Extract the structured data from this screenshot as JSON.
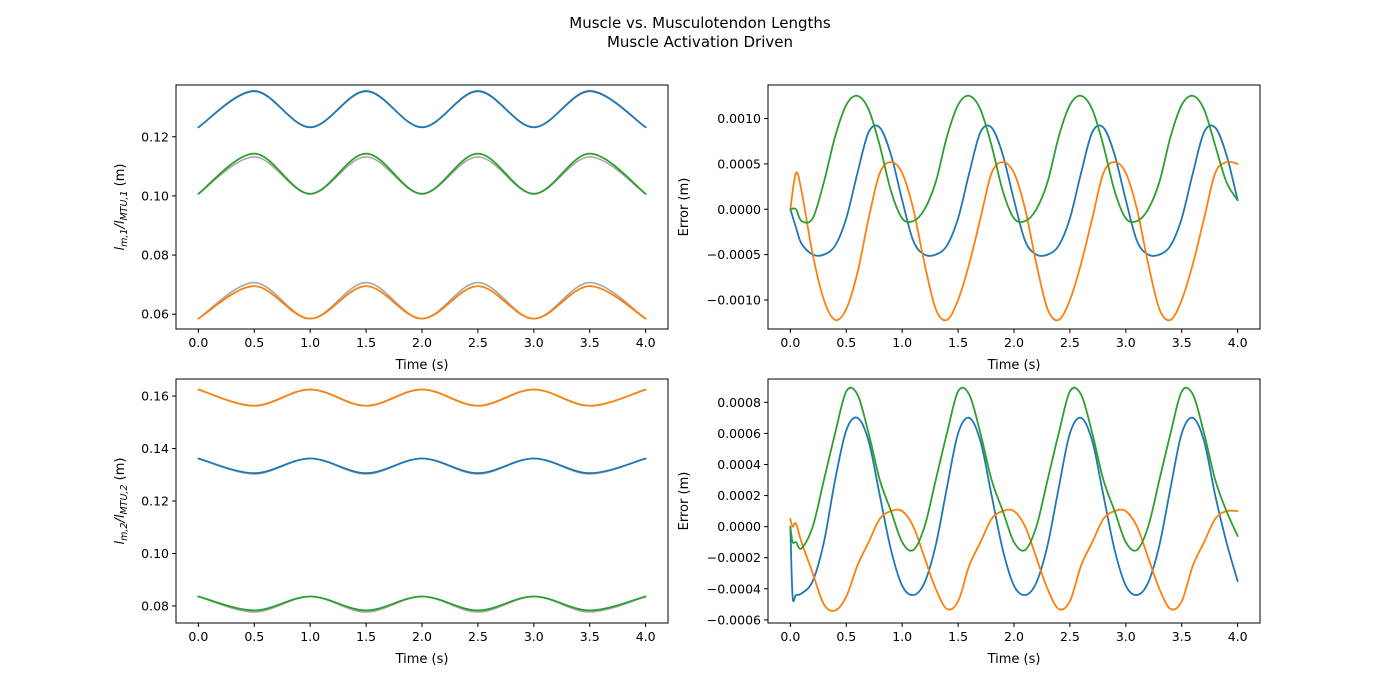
{
  "figure": {
    "title_line1": "Muscle vs. Musculotendon Lengths",
    "title_line2": "Muscle Activation Driven"
  },
  "colors": {
    "blue": "#1f77b4",
    "orange": "#ff7f0e",
    "green": "#2ca02c",
    "gray": "#a6a6a6"
  },
  "chart_data": [
    {
      "type": "line",
      "panel": "top-left",
      "xlabel": "Time (s)",
      "ylabel_main": "l",
      "ylabel_sub1": "m,1",
      "ylabel_mid": "/l",
      "ylabel_sub2": "MTU,1",
      "ylabel_unit": " (m)",
      "xlim": [
        -0.2,
        4.2
      ],
      "ylim": [
        0.055,
        0.1375
      ],
      "xticks": [
        0.0,
        0.5,
        1.0,
        1.5,
        2.0,
        2.5,
        3.0,
        3.5,
        4.0
      ],
      "xtick_labels": [
        "0.0",
        "0.5",
        "1.0",
        "1.5",
        "2.0",
        "2.5",
        "3.0",
        "3.5",
        "4.0"
      ],
      "yticks": [
        0.06,
        0.08,
        0.1,
        0.12
      ],
      "ytick_labels": [
        "0.06",
        "0.08",
        "0.10",
        "0.12"
      ],
      "grid": false,
      "x": [
        0.0,
        0.5,
        1.0,
        1.5,
        2.0,
        2.5,
        3.0,
        3.5,
        4.0
      ],
      "series": [
        {
          "color_key": "gray",
          "values": [
            0.1232,
            0.1356,
            0.1232,
            0.1356,
            0.1232,
            0.1356,
            0.1232,
            0.1356,
            0.1232
          ]
        },
        {
          "color_key": "blue",
          "values": [
            0.1232,
            0.1354,
            0.1232,
            0.1354,
            0.1232,
            0.1354,
            0.1232,
            0.1354,
            0.1232
          ]
        },
        {
          "color_key": "gray",
          "values": [
            0.1007,
            0.1132,
            0.1007,
            0.1132,
            0.1007,
            0.1132,
            0.1007,
            0.1132,
            0.1007
          ]
        },
        {
          "color_key": "green",
          "values": [
            0.1007,
            0.1143,
            0.1007,
            0.1143,
            0.1007,
            0.1143,
            0.1007,
            0.1143,
            0.1007
          ]
        },
        {
          "color_key": "gray",
          "values": [
            0.0585,
            0.0707,
            0.0585,
            0.0707,
            0.0585,
            0.0707,
            0.0585,
            0.0707,
            0.0585
          ]
        },
        {
          "color_key": "orange",
          "values": [
            0.0585,
            0.0695,
            0.0585,
            0.0695,
            0.0585,
            0.0695,
            0.0585,
            0.0695,
            0.0585
          ]
        }
      ]
    },
    {
      "type": "line",
      "panel": "top-right",
      "xlabel": "Time (s)",
      "ylabel": "Error (m)",
      "xlim": [
        -0.2,
        4.2
      ],
      "ylim": [
        -0.00132,
        0.00137
      ],
      "xticks": [
        0.0,
        0.5,
        1.0,
        1.5,
        2.0,
        2.5,
        3.0,
        3.5,
        4.0
      ],
      "xtick_labels": [
        "0.0",
        "0.5",
        "1.0",
        "1.5",
        "2.0",
        "2.5",
        "3.0",
        "3.5",
        "4.0"
      ],
      "yticks": [
        -0.001,
        -0.0005,
        0.0,
        0.0005,
        0.001
      ],
      "ytick_labels": [
        "−0.0010",
        "−0.0005",
        "0.0000",
        "0.0005",
        "0.0010"
      ],
      "grid": false,
      "x": [
        0.0,
        0.05,
        0.1,
        0.2,
        0.3,
        0.4,
        0.5,
        0.6,
        0.7,
        0.8,
        0.9,
        1.0,
        1.1,
        1.2,
        1.3,
        1.4,
        1.5,
        1.6,
        1.7,
        1.8,
        1.9,
        2.0,
        2.1,
        2.2,
        2.3,
        2.4,
        2.5,
        2.6,
        2.7,
        2.8,
        2.9,
        3.0,
        3.1,
        3.2,
        3.3,
        3.4,
        3.5,
        3.6,
        3.7,
        3.8,
        3.9,
        4.0
      ],
      "series": [
        {
          "color_key": "blue",
          "values": [
            0.0,
            -0.0002,
            -0.00038,
            -0.0005,
            -0.0005,
            -0.0004,
            -0.0001,
            0.0004,
            0.00085,
            0.0009,
            0.0006,
            0.0001,
            -0.00035,
            -0.0005,
            -0.0005,
            -0.0004,
            -0.0001,
            0.0004,
            0.00085,
            0.0009,
            0.0006,
            0.0001,
            -0.00035,
            -0.0005,
            -0.0005,
            -0.0004,
            -0.0001,
            0.0004,
            0.00085,
            0.0009,
            0.0006,
            0.0001,
            -0.00035,
            -0.0005,
            -0.0005,
            -0.0004,
            -0.0001,
            0.0004,
            0.00085,
            0.0009,
            0.0006,
            0.0001
          ]
        },
        {
          "color_key": "orange",
          "values": [
            0.0,
            0.0004,
            0.0002,
            -0.0005,
            -0.001,
            -0.00122,
            -0.0011,
            -0.0007,
            -0.0001,
            0.0004,
            0.00052,
            0.0004,
            0.0,
            -0.0006,
            -0.0011,
            -0.00122,
            -0.001,
            -0.0006,
            -0.0001,
            0.0004,
            0.00052,
            0.0004,
            0.0,
            -0.0006,
            -0.0011,
            -0.00122,
            -0.001,
            -0.0006,
            -0.0001,
            0.0004,
            0.00052,
            0.0004,
            0.0,
            -0.0006,
            -0.0011,
            -0.00122,
            -0.001,
            -0.0006,
            -0.0001,
            0.0004,
            0.00052,
            0.0005
          ]
        },
        {
          "color_key": "green",
          "values": [
            0.0,
            0.0,
            -0.00013,
            -0.0001,
            0.0003,
            0.0008,
            0.00115,
            0.00125,
            0.0011,
            0.0007,
            0.0002,
            -0.0001,
            -0.00013,
            0.0,
            0.0003,
            0.0008,
            0.00115,
            0.00125,
            0.0011,
            0.0007,
            0.0002,
            -0.0001,
            -0.00013,
            0.0,
            0.0003,
            0.0008,
            0.00115,
            0.00125,
            0.0011,
            0.0007,
            0.0002,
            -0.0001,
            -0.00013,
            0.0,
            0.0003,
            0.0008,
            0.00115,
            0.00125,
            0.0011,
            0.0007,
            0.0003,
            0.0001
          ]
        }
      ]
    },
    {
      "type": "line",
      "panel": "bottom-left",
      "xlabel": "Time (s)",
      "ylabel_main": "l",
      "ylabel_sub1": "m,2",
      "ylabel_mid": "/l",
      "ylabel_sub2": "MTU,2",
      "ylabel_unit": " (m)",
      "xlim": [
        -0.2,
        4.2
      ],
      "ylim": [
        0.0735,
        0.1665
      ],
      "xticks": [
        0.0,
        0.5,
        1.0,
        1.5,
        2.0,
        2.5,
        3.0,
        3.5,
        4.0
      ],
      "xtick_labels": [
        "0.0",
        "0.5",
        "1.0",
        "1.5",
        "2.0",
        "2.5",
        "3.0",
        "3.5",
        "4.0"
      ],
      "yticks": [
        0.08,
        0.1,
        0.12,
        0.14,
        0.16
      ],
      "ytick_labels": [
        "0.08",
        "0.10",
        "0.12",
        "0.14",
        "0.16"
      ],
      "grid": false,
      "x": [
        0.0,
        0.5,
        1.0,
        1.5,
        2.0,
        2.5,
        3.0,
        3.5,
        4.0
      ],
      "series": [
        {
          "color_key": "gray",
          "values": [
            0.1625,
            0.1563,
            0.1625,
            0.1563,
            0.1625,
            0.1563,
            0.1625,
            0.1563,
            0.1625
          ]
        },
        {
          "color_key": "orange",
          "values": [
            0.1625,
            0.1563,
            0.1625,
            0.1563,
            0.1625,
            0.1563,
            0.1625,
            0.1563,
            0.1625
          ]
        },
        {
          "color_key": "gray",
          "values": [
            0.1362,
            0.1303,
            0.1362,
            0.1303,
            0.1362,
            0.1303,
            0.1362,
            0.1303,
            0.1362
          ]
        },
        {
          "color_key": "blue",
          "values": [
            0.1362,
            0.1306,
            0.1362,
            0.1306,
            0.1362,
            0.1306,
            0.1362,
            0.1306,
            0.1362
          ]
        },
        {
          "color_key": "gray",
          "values": [
            0.0836,
            0.0777,
            0.0836,
            0.0777,
            0.0836,
            0.0777,
            0.0836,
            0.0777,
            0.0836
          ]
        },
        {
          "color_key": "green",
          "values": [
            0.0836,
            0.0783,
            0.0836,
            0.0783,
            0.0836,
            0.0783,
            0.0836,
            0.0783,
            0.0836
          ]
        }
      ]
    },
    {
      "type": "line",
      "panel": "bottom-right",
      "xlabel": "Time (s)",
      "ylabel": "Error (m)",
      "xlim": [
        -0.2,
        4.2
      ],
      "ylim": [
        -0.00062,
        0.00095
      ],
      "xticks": [
        0.0,
        0.5,
        1.0,
        1.5,
        2.0,
        2.5,
        3.0,
        3.5,
        4.0
      ],
      "xtick_labels": [
        "0.0",
        "0.5",
        "1.0",
        "1.5",
        "2.0",
        "2.5",
        "3.0",
        "3.5",
        "4.0"
      ],
      "yticks": [
        -0.0006,
        -0.0004,
        -0.0002,
        0.0,
        0.0002,
        0.0004,
        0.0006,
        0.0008
      ],
      "ytick_labels": [
        "−0.0006",
        "−0.0004",
        "−0.0002",
        "0.0000",
        "0.0002",
        "0.0004",
        "0.0006",
        "0.0008"
      ],
      "grid": false,
      "x": [
        0.0,
        0.02,
        0.05,
        0.1,
        0.2,
        0.3,
        0.4,
        0.5,
        0.6,
        0.7,
        0.8,
        0.9,
        1.0,
        1.1,
        1.2,
        1.3,
        1.4,
        1.5,
        1.6,
        1.7,
        1.8,
        1.9,
        2.0,
        2.1,
        2.2,
        2.3,
        2.4,
        2.5,
        2.6,
        2.7,
        2.8,
        2.9,
        3.0,
        3.1,
        3.2,
        3.3,
        3.4,
        3.5,
        3.6,
        3.7,
        3.8,
        3.9,
        4.0
      ],
      "series": [
        {
          "color_key": "blue",
          "values": [
            0.0,
            -0.00045,
            -0.00044,
            -0.00043,
            -0.00035,
            -0.0001,
            0.0003,
            0.00062,
            0.0007,
            0.00055,
            0.0002,
            -0.00015,
            -0.00038,
            -0.00044,
            -0.00036,
            -0.00012,
            0.00025,
            0.0006,
            0.0007,
            0.00055,
            0.0002,
            -0.00015,
            -0.00038,
            -0.00044,
            -0.00036,
            -0.00012,
            0.00025,
            0.0006,
            0.0007,
            0.00055,
            0.0002,
            -0.00015,
            -0.00038,
            -0.00044,
            -0.00036,
            -0.00012,
            0.00025,
            0.0006,
            0.0007,
            0.00055,
            0.0002,
            -0.0001,
            -0.00035
          ]
        },
        {
          "color_key": "orange",
          "values": [
            5e-05,
            0.0,
            2e-05,
            -0.0001,
            -0.0003,
            -0.0005,
            -0.00054,
            -0.00045,
            -0.00025,
            -0.0001,
            5e-05,
            0.0001,
            0.0001,
            0.0,
            -0.0002,
            -0.0004,
            -0.00053,
            -0.00048,
            -0.00025,
            -0.0001,
            5e-05,
            0.0001,
            0.0001,
            0.0,
            -0.0002,
            -0.0004,
            -0.00053,
            -0.00048,
            -0.00025,
            -0.0001,
            5e-05,
            0.0001,
            0.0001,
            0.0,
            -0.0002,
            -0.0004,
            -0.00053,
            -0.00048,
            -0.00025,
            -0.0001,
            5e-05,
            0.0001,
            0.0001
          ]
        },
        {
          "color_key": "green",
          "values": [
            0.0,
            -0.0001,
            -0.0001,
            -0.00014,
            0.0,
            0.0003,
            0.0006,
            0.00087,
            0.00085,
            0.0006,
            0.0003,
            0.0001,
            -0.0001,
            -0.00015,
            0.0,
            0.0003,
            0.0006,
            0.00087,
            0.00085,
            0.0006,
            0.0003,
            0.0001,
            -0.0001,
            -0.00015,
            0.0,
            0.0003,
            0.0006,
            0.00087,
            0.00085,
            0.0006,
            0.0003,
            0.0001,
            -0.0001,
            -0.00015,
            0.0,
            0.0003,
            0.0006,
            0.00087,
            0.00085,
            0.0006,
            0.0003,
            0.0001,
            -6e-05
          ]
        }
      ]
    }
  ]
}
